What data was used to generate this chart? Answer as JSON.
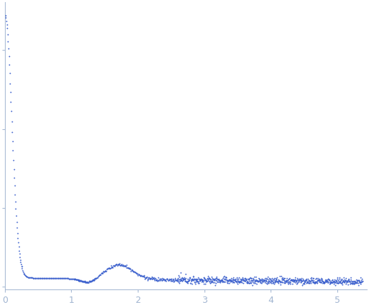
{
  "title": "",
  "xlabel": "",
  "ylabel": "",
  "xlim": [
    0,
    5.45
  ],
  "dot_color": "#3a5fcd",
  "axis_color": "#a0b4d0",
  "tick_color": "#a0b4d0",
  "tick_label_color": "#a0b4d0",
  "background_color": "#ffffff",
  "xticks": [
    0,
    1,
    2,
    3,
    4,
    5
  ],
  "dot_size": 1.8,
  "spine_linewidth": 0.7
}
